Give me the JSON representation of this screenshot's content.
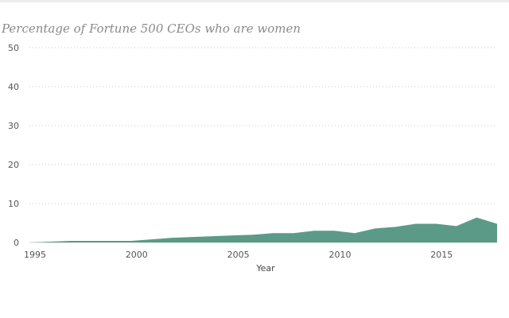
{
  "chart_data": {
    "type": "area",
    "title": "Percentage of Fortune 500 CEOs who are women",
    "xlabel": "Year",
    "ylabel": "",
    "xlim": [
      1995,
      2018
    ],
    "ylim": [
      0,
      50
    ],
    "x_ticks": [
      1995,
      2000,
      2005,
      2010,
      2015
    ],
    "y_ticks": [
      0,
      10,
      20,
      30,
      40,
      50
    ],
    "grid": true,
    "color": "#5b9a87",
    "series": [
      {
        "x": [
          1995,
          1996,
          1997,
          1998,
          1999,
          2000,
          2001,
          2002,
          2003,
          2004,
          2005,
          2006,
          2007,
          2008,
          2009,
          2010,
          2011,
          2012,
          2013,
          2014,
          2015,
          2016,
          2017,
          2018
        ],
        "values": [
          0,
          0.2,
          0.4,
          0.4,
          0.4,
          0.4,
          0.8,
          1.2,
          1.4,
          1.6,
          1.8,
          2.0,
          2.4,
          2.4,
          3.0,
          3.0,
          2.4,
          3.6,
          4.0,
          4.8,
          4.8,
          4.2,
          6.4,
          4.8
        ]
      }
    ]
  }
}
